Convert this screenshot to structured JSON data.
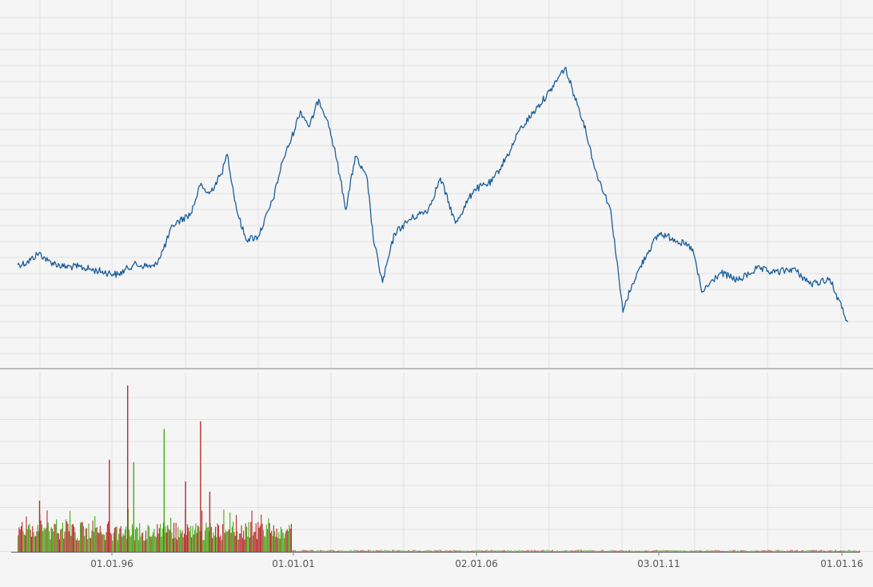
{
  "chart_data": [
    {
      "type": "line",
      "panel": "price",
      "title": "",
      "xlabel": "",
      "ylabel": "",
      "grid": true,
      "legend": "none",
      "xlim": [
        "1993-05-01",
        "2016-03-01"
      ],
      "color": "#1a5e9c",
      "series": [
        {
          "points": [
            [
              "1993-06-01",
              32
            ],
            [
              "1993-09-01",
              33
            ],
            [
              "1994-01-01",
              38
            ],
            [
              "1994-04-01",
              34
            ],
            [
              "1994-09-01",
              31
            ],
            [
              "1995-02-01",
              31
            ],
            [
              "1995-08-01",
              29
            ],
            [
              "1996-03-01",
              27
            ],
            [
              "1996-08-01",
              32
            ],
            [
              "1997-03-01",
              31
            ],
            [
              "1997-06-01",
              40
            ],
            [
              "1997-09-01",
              52
            ],
            [
              "1998-03-01",
              58
            ],
            [
              "1998-06-01",
              72
            ],
            [
              "1998-09-01",
              68
            ],
            [
              "1999-01-01",
              78
            ],
            [
              "1999-03-01",
              88
            ],
            [
              "1999-06-01",
              60
            ],
            [
              "1999-09-01",
              45
            ],
            [
              "2000-01-01",
              46
            ],
            [
              "2000-06-01",
              65
            ],
            [
              "2000-09-01",
              84
            ],
            [
              "2000-12-01",
              96
            ],
            [
              "2001-03-01",
              110
            ],
            [
              "2001-06-01",
              102
            ],
            [
              "2001-09-01",
              116
            ],
            [
              "2001-12-01",
              105
            ],
            [
              "2002-03-01",
              85
            ],
            [
              "2002-06-01",
              60
            ],
            [
              "2002-09-01",
              87
            ],
            [
              "2003-01-01",
              75
            ],
            [
              "2003-03-01",
              45
            ],
            [
              "2003-06-01",
              23
            ],
            [
              "2003-10-01",
              48
            ],
            [
              "2004-03-01",
              55
            ],
            [
              "2004-09-01",
              60
            ],
            [
              "2005-01-01",
              76
            ],
            [
              "2005-06-01",
              53
            ],
            [
              "2005-12-01",
              70
            ],
            [
              "2006-06-01",
              74
            ],
            [
              "2006-12-01",
              90
            ],
            [
              "2007-03-01",
              100
            ],
            [
              "2007-09-01",
              112
            ],
            [
              "2008-01-01",
              120
            ],
            [
              "2008-06-01",
              132
            ],
            [
              "2008-09-01",
              118
            ],
            [
              "2008-12-01",
              105
            ],
            [
              "2009-04-01",
              80
            ],
            [
              "2009-09-01",
              60
            ],
            [
              "2010-01-01",
              8
            ],
            [
              "2010-04-01",
              22
            ],
            [
              "2010-09-01",
              38
            ],
            [
              "2011-01-01",
              48
            ],
            [
              "2011-06-01",
              45
            ],
            [
              "2011-12-01",
              40
            ],
            [
              "2012-03-01",
              18
            ],
            [
              "2012-09-01",
              28
            ],
            [
              "2013-03-01",
              24
            ],
            [
              "2013-09-01",
              30
            ],
            [
              "2014-03-01",
              28
            ],
            [
              "2014-09-01",
              30
            ],
            [
              "2015-03-01",
              22
            ],
            [
              "2015-09-01",
              25
            ],
            [
              "2016-01-01",
              10
            ],
            [
              "2016-03-01",
              3
            ]
          ]
        }
      ]
    },
    {
      "type": "bar",
      "panel": "volume",
      "title": "",
      "xlabel": "",
      "ylabel": "",
      "grid": true,
      "legend": "none",
      "colors": {
        "up": "#4aa818",
        "down": "#b82c2c"
      },
      "x_ticks": [
        "01.01.96",
        "01.01.01",
        "02.01.06",
        "03.01.11",
        "01.01.16"
      ],
      "spikes": [
        {
          "x": "1995-12-01",
          "value": 72,
          "dir": "down"
        },
        {
          "x": "1996-06-01",
          "value": 130,
          "dir": "down"
        },
        {
          "x": "1997-06-01",
          "value": 96,
          "dir": "up"
        },
        {
          "x": "1998-01-01",
          "value": 55,
          "dir": "down"
        },
        {
          "x": "1998-06-01",
          "value": 102,
          "dir": "down"
        },
        {
          "x": "1998-09-01",
          "value": 47,
          "dir": "down"
        },
        {
          "x": "1996-08-01",
          "value": 70,
          "dir": "up"
        },
        {
          "x": "1994-01-01",
          "value": 40,
          "dir": "down"
        }
      ]
    }
  ]
}
